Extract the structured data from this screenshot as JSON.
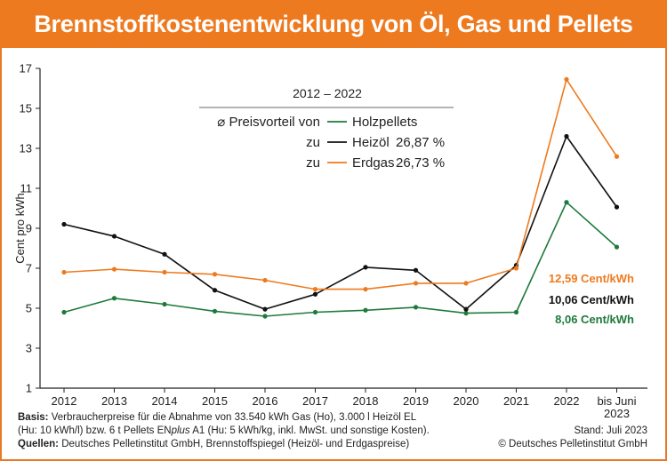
{
  "title": "Brennstoffkostenentwicklung von Öl, Gas und Pellets",
  "chart_data": {
    "type": "line",
    "categories": [
      "2012",
      "2013",
      "2014",
      "2015",
      "2016",
      "2017",
      "2018",
      "2019",
      "2020",
      "2021",
      "2022",
      "bis Juni 2023"
    ],
    "category_lines": [
      [
        "2012"
      ],
      [
        "2013"
      ],
      [
        "2014"
      ],
      [
        "2015"
      ],
      [
        "2016"
      ],
      [
        "2017"
      ],
      [
        "2018"
      ],
      [
        "2019"
      ],
      [
        "2020"
      ],
      [
        "2021"
      ],
      [
        "2022"
      ],
      [
        "bis Juni",
        "2023"
      ]
    ],
    "ylabel": "Cent pro kWh",
    "ylim": [
      1,
      17
    ],
    "yticks": [
      1,
      3,
      5,
      7,
      9,
      11,
      13,
      15,
      17
    ],
    "grid": false,
    "series": [
      {
        "name": "Holzpellets",
        "color": "#1e7a3c",
        "values": [
          4.8,
          5.5,
          5.2,
          4.85,
          4.6,
          4.8,
          4.9,
          5.05,
          4.75,
          4.8,
          10.3,
          8.06
        ]
      },
      {
        "name": "Heizöl",
        "color": "#111111",
        "values": [
          9.2,
          8.6,
          7.7,
          5.9,
          4.95,
          5.7,
          7.05,
          6.9,
          4.95,
          7.15,
          13.6,
          10.06
        ]
      },
      {
        "name": "Erdgas",
        "color": "#ee7a1f",
        "values": [
          6.8,
          6.95,
          6.8,
          6.7,
          6.4,
          5.95,
          5.95,
          6.25,
          6.25,
          7.0,
          16.45,
          12.59
        ]
      }
    ],
    "legend": {
      "period": "2012 – 2022",
      "prefix": "⌀ Preisvorteil von",
      "zu": "zu",
      "entries": [
        {
          "label": "Holzpellets",
          "value": ""
        },
        {
          "label": "Heizöl",
          "value": "26,87 %"
        },
        {
          "label": "Erdgas",
          "value": "26,73 %"
        }
      ]
    },
    "end_labels": [
      {
        "text": "12,59 Cent/kWh",
        "color": "#ee7a1f"
      },
      {
        "text": "10,06 Cent/kWh",
        "color": "#111111"
      },
      {
        "text": "8,06 Cent/kWh",
        "color": "#1e7a3c"
      }
    ]
  },
  "footer": {
    "basis_label": "Basis:",
    "basis_line1": "Verbraucherpreise für die Abnahme von 33.540 kWh Gas (Ho), 3.000 l Heizöl EL",
    "basis_line2a": "(Hu: 10 kWh/l) bzw. 6 t Pellets EN",
    "basis_line2_italic": "plus",
    "basis_line2b": " A1 (Hu: 5 kWh/kg, inkl. MwSt. und sonstige Kosten).",
    "sources_label": "Quellen:",
    "sources_text": "Deutsches Pelletinstitut GmbH, Brennstoffspiegel (Heizöl- und Erdgaspreise)",
    "status": "Stand: Juli 2023",
    "copyright": "© Deutsches Pelletinstitut GmbH"
  }
}
